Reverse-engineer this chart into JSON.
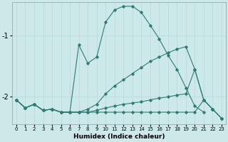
{
  "xlabel": "Humidex (Indice chaleur)",
  "background_color": "#cce8e8",
  "grid_color": "#b8d8d8",
  "line_color": "#2e7d72",
  "xlim": [
    -0.5,
    23.5
  ],
  "ylim": [
    -2.45,
    -0.45
  ],
  "yticks": [
    -2,
    -1
  ],
  "ytick_labels": [
    "-2",
    "-1"
  ],
  "xticks": [
    0,
    1,
    2,
    3,
    4,
    5,
    6,
    7,
    8,
    9,
    10,
    11,
    12,
    13,
    14,
    15,
    16,
    17,
    18,
    19,
    20,
    21,
    22,
    23
  ],
  "series1_x": [
    0,
    1,
    2,
    3,
    4,
    5,
    6,
    7,
    8,
    9,
    10,
    11,
    12,
    13,
    14,
    15,
    16,
    17,
    18,
    19,
    20,
    21
  ],
  "series1_y": [
    -2.05,
    -2.18,
    -2.12,
    -2.22,
    -2.2,
    -2.25,
    -2.25,
    -1.15,
    -1.45,
    -1.35,
    -0.78,
    -0.58,
    -0.52,
    -0.52,
    -0.62,
    -0.83,
    -1.05,
    -1.32,
    -1.55,
    -1.85,
    -2.15,
    -2.25
  ],
  "series2_x": [
    0,
    1,
    2,
    3,
    4,
    5,
    6,
    7,
    8,
    9,
    10,
    11,
    12,
    13,
    14,
    15,
    16,
    17,
    18,
    19,
    20,
    21,
    22,
    23
  ],
  "series2_y": [
    -2.05,
    -2.18,
    -2.12,
    -2.22,
    -2.2,
    -2.25,
    -2.25,
    -2.25,
    -2.2,
    -2.12,
    -1.95,
    -1.82,
    -1.72,
    -1.62,
    -1.52,
    -1.42,
    -1.35,
    -1.28,
    -1.22,
    -1.18,
    -1.55,
    -2.05,
    -2.2,
    -2.35
  ],
  "series3_x": [
    0,
    1,
    2,
    3,
    4,
    5,
    6,
    7,
    8,
    9,
    10,
    11,
    12,
    13,
    14,
    15,
    16,
    17,
    18,
    19,
    20,
    21,
    22,
    23
  ],
  "series3_y": [
    -2.05,
    -2.18,
    -2.12,
    -2.22,
    -2.2,
    -2.25,
    -2.25,
    -2.25,
    -2.25,
    -2.25,
    -2.25,
    -2.25,
    -2.25,
    -2.25,
    -2.25,
    -2.25,
    -2.25,
    -2.25,
    -2.25,
    -2.25,
    -2.25,
    -2.05,
    -2.2,
    -2.35
  ],
  "series4_x": [
    0,
    1,
    2,
    3,
    4,
    5,
    6,
    7,
    8,
    9,
    10,
    11,
    12,
    13,
    14,
    15,
    16,
    17,
    18,
    19,
    20,
    21,
    22,
    23
  ],
  "series4_y": [
    -2.05,
    -2.18,
    -2.12,
    -2.22,
    -2.2,
    -2.25,
    -2.25,
    -2.25,
    -2.25,
    -2.22,
    -2.18,
    -2.15,
    -2.12,
    -2.1,
    -2.08,
    -2.05,
    -2.02,
    -2.0,
    -1.97,
    -1.95,
    -1.55,
    -2.05,
    -2.2,
    -2.35
  ]
}
